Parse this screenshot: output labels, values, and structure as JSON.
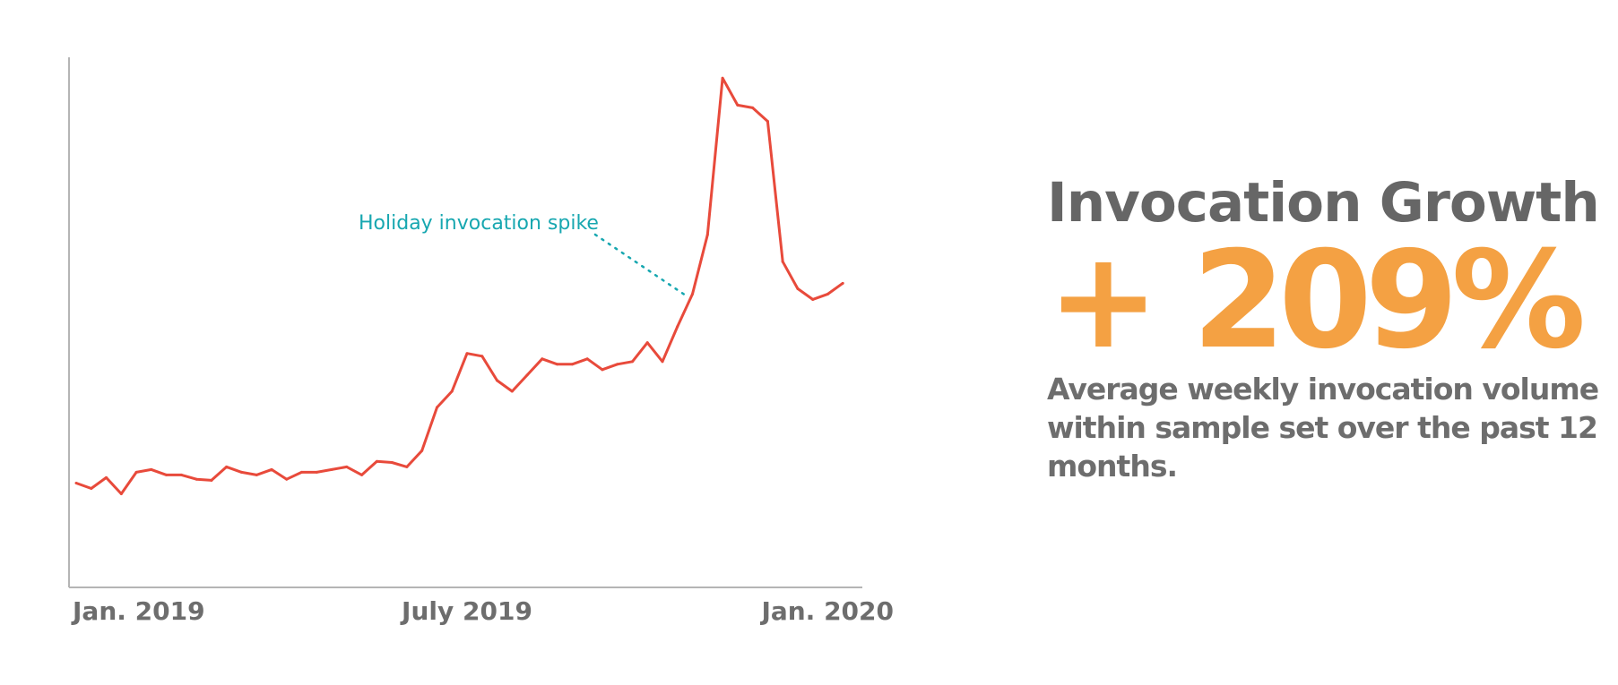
{
  "colors": {
    "line": "#e84a3b",
    "axis": "#b5b5b5",
    "annotation": "#17a7b0",
    "tick_text": "#6d6d6d",
    "title_text": "#666666",
    "accent": "#f4a143"
  },
  "chart_data": {
    "type": "line",
    "x_unit": "week",
    "x_ticks": [
      {
        "x": 0,
        "label": "Jan. 2019"
      },
      {
        "x": 26,
        "label": "July 2019"
      },
      {
        "x": 52,
        "label": "Jan. 2020"
      }
    ],
    "xlim": [
      0,
      52
    ],
    "ylim": [
      0,
      100
    ],
    "grid": false,
    "series": [
      {
        "name": "",
        "x": [
          0,
          1,
          2,
          3,
          4,
          5,
          6,
          7,
          8,
          9,
          10,
          11,
          12,
          13,
          14,
          15,
          16,
          17,
          18,
          19,
          20,
          21,
          22,
          23,
          24,
          25,
          26,
          27,
          28,
          29,
          30,
          31,
          32,
          33,
          34,
          35,
          36,
          37,
          38,
          39,
          40,
          41,
          42,
          43,
          44,
          45,
          46,
          47,
          48,
          49,
          50,
          51
        ],
        "y": [
          18,
          17,
          19,
          16,
          20,
          20.5,
          19.5,
          19.5,
          18.7,
          18.5,
          21,
          20,
          19.5,
          20.5,
          18.7,
          20,
          20,
          20.5,
          21,
          19.5,
          22,
          21.8,
          21,
          24,
          32,
          35,
          42,
          41.5,
          37,
          35,
          38,
          41,
          40,
          40,
          41,
          39,
          40,
          40.5,
          44,
          40.5,
          47,
          53,
          64,
          93,
          88,
          87.5,
          85,
          59,
          54,
          52,
          53,
          55
        ]
      }
    ],
    "annotations": [
      {
        "text": "Holiday invocation spike",
        "points_to_x": 41
      }
    ]
  },
  "summary": {
    "title": "Invocation Growth",
    "value": "+ 209%",
    "description": "Average weekly invocation volume within sample set over the past 12 months."
  }
}
